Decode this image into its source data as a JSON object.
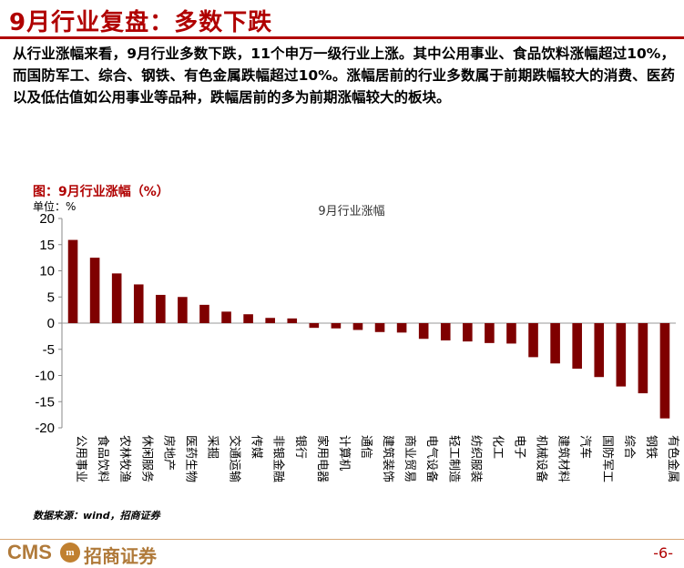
{
  "header": {
    "title": "9月行业复盘：多数下跌"
  },
  "summary": "从行业涨幅来看，9月行业多数下跌，11个申万一级行业上涨。其中公用事业、食品饮料涨幅超过10%，而国防军工、综合、钢铁、有色金属跌幅超过10%。涨幅居前的行业多数属于前期跌幅较大的消费、医药以及低估值如公用事业等品种，跌幅居前的多为前期涨幅较大的板块。",
  "figure": {
    "caption": "图：9月行业涨幅（%）",
    "unit": "单位：%"
  },
  "source": "数据来源：wind，招商证券",
  "footer": {
    "logo_text": "CMS",
    "logo_mark": "m",
    "company": "招商证券",
    "page": "-6-"
  },
  "colors": {
    "accent": "#b00000",
    "bar": "#7f0000",
    "footer_gold": "#b07a3a"
  },
  "chart_data": {
    "type": "bar",
    "title": "9月行业涨幅",
    "ylim": [
      -20,
      20
    ],
    "yticks": [
      20,
      15,
      10,
      5,
      0,
      -5,
      -10,
      -15,
      -20
    ],
    "categories": [
      "公用事业",
      "食品饮料",
      "农林牧渔",
      "休闲服务",
      "房地产",
      "医药生物",
      "采掘",
      "交通运输",
      "传媒",
      "非银金融",
      "银行",
      "家用电器",
      "计算机",
      "通信",
      "建筑装饰",
      "商业贸易",
      "电气设备",
      "轻工制造",
      "纺织服装",
      "化工",
      "电子",
      "机械设备",
      "建筑材料",
      "汽车",
      "国防军工",
      "综合",
      "钢铁",
      "有色金属"
    ],
    "values": [
      15.9,
      12.5,
      9.5,
      7.4,
      5.4,
      5.0,
      3.5,
      2.2,
      1.7,
      1.0,
      0.9,
      -0.9,
      -1.0,
      -1.3,
      -1.7,
      -1.8,
      -3.0,
      -3.3,
      -3.5,
      -3.8,
      -3.9,
      -6.5,
      -7.7,
      -8.7,
      -10.3,
      -12.1,
      -13.4,
      -18.2
    ],
    "grid": false,
    "legend": "none"
  }
}
